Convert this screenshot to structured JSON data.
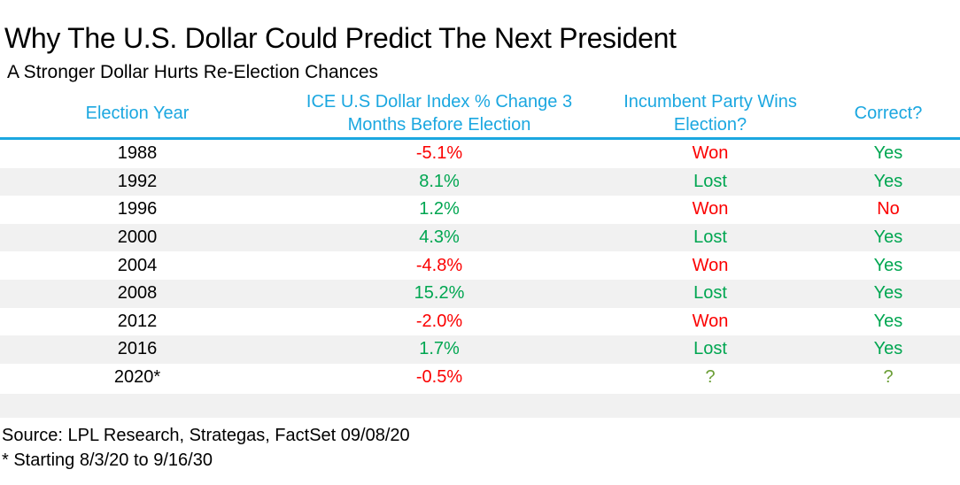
{
  "title": "Why The U.S. Dollar Could Predict The Next President",
  "subtitle": "A Stronger Dollar Hurts Re-Election Chances",
  "colors": {
    "header_blue": "#1BA7E0",
    "positive_green": "#00A651",
    "negative_red": "#FB0000",
    "unknown_olive": "#6B9E36",
    "stripe_gray": "#F1F1F1",
    "text_black": "#000000"
  },
  "chart_data": {
    "type": "table",
    "title": "Why The U.S. Dollar Could Predict The Next President",
    "subtitle": "A Stronger Dollar Hurts Re-Election Chances",
    "columns": [
      "Election Year",
      "ICE U.S Dollar Index % Change 3 Months Before Election",
      "Incumbent Party Wins Election?",
      "Correct?"
    ],
    "pct_change_values": [
      -5.1,
      8.1,
      1.2,
      4.3,
      -4.8,
      15.2,
      -2.0,
      1.7,
      -0.5
    ],
    "rows": [
      {
        "year": "1988",
        "change": "-5.1%",
        "change_color": "red",
        "incumbent": "Won",
        "incumbent_color": "red",
        "correct": "Yes",
        "correct_color": "green"
      },
      {
        "year": "1992",
        "change": "8.1%",
        "change_color": "green",
        "incumbent": "Lost",
        "incumbent_color": "green",
        "correct": "Yes",
        "correct_color": "green"
      },
      {
        "year": "1996",
        "change": "1.2%",
        "change_color": "green",
        "incumbent": "Won",
        "incumbent_color": "red",
        "correct": "No",
        "correct_color": "red"
      },
      {
        "year": "2000",
        "change": "4.3%",
        "change_color": "green",
        "incumbent": "Lost",
        "incumbent_color": "green",
        "correct": "Yes",
        "correct_color": "green"
      },
      {
        "year": "2004",
        "change": "-4.8%",
        "change_color": "red",
        "incumbent": "Won",
        "incumbent_color": "red",
        "correct": "Yes",
        "correct_color": "green"
      },
      {
        "year": "2008",
        "change": "15.2%",
        "change_color": "green",
        "incumbent": "Lost",
        "incumbent_color": "green",
        "correct": "Yes",
        "correct_color": "green"
      },
      {
        "year": "2012",
        "change": "-2.0%",
        "change_color": "red",
        "incumbent": "Won",
        "incumbent_color": "red",
        "correct": "Yes",
        "correct_color": "green"
      },
      {
        "year": "2016",
        "change": "1.7%",
        "change_color": "green",
        "incumbent": "Lost",
        "incumbent_color": "green",
        "correct": "Yes",
        "correct_color": "green"
      },
      {
        "year": "2020*",
        "change": "-0.5%",
        "change_color": "red",
        "incumbent": "?",
        "incumbent_color": "olive",
        "correct": "?",
        "correct_color": "olive"
      }
    ]
  },
  "footer": {
    "source": "Source: LPL Research, Strategas, FactSet 09/08/20",
    "note": "* Starting 8/3/20 to 9/16/30"
  }
}
